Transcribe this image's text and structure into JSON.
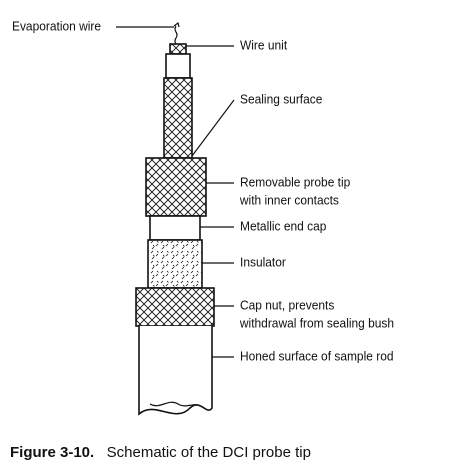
{
  "labels": {
    "evaporation_wire": "Evaporation wire",
    "wire_unit": "Wire unit",
    "sealing_surface": "Sealing surface",
    "probe_tip_line1": "Removable probe tip",
    "probe_tip_line2": "with inner contacts",
    "metallic_end_cap": "Metallic end cap",
    "insulator": "Insulator",
    "cap_nut_line1": "Cap nut, prevents",
    "cap_nut_line2": "withdrawal from sealing bush",
    "honed_surface": "Honed surface of sample rod"
  },
  "caption": {
    "number": "Figure 3-10.",
    "text": "Schematic of the DCI probe tip"
  },
  "colors": {
    "line": "#111111",
    "background": "#ffffff"
  }
}
